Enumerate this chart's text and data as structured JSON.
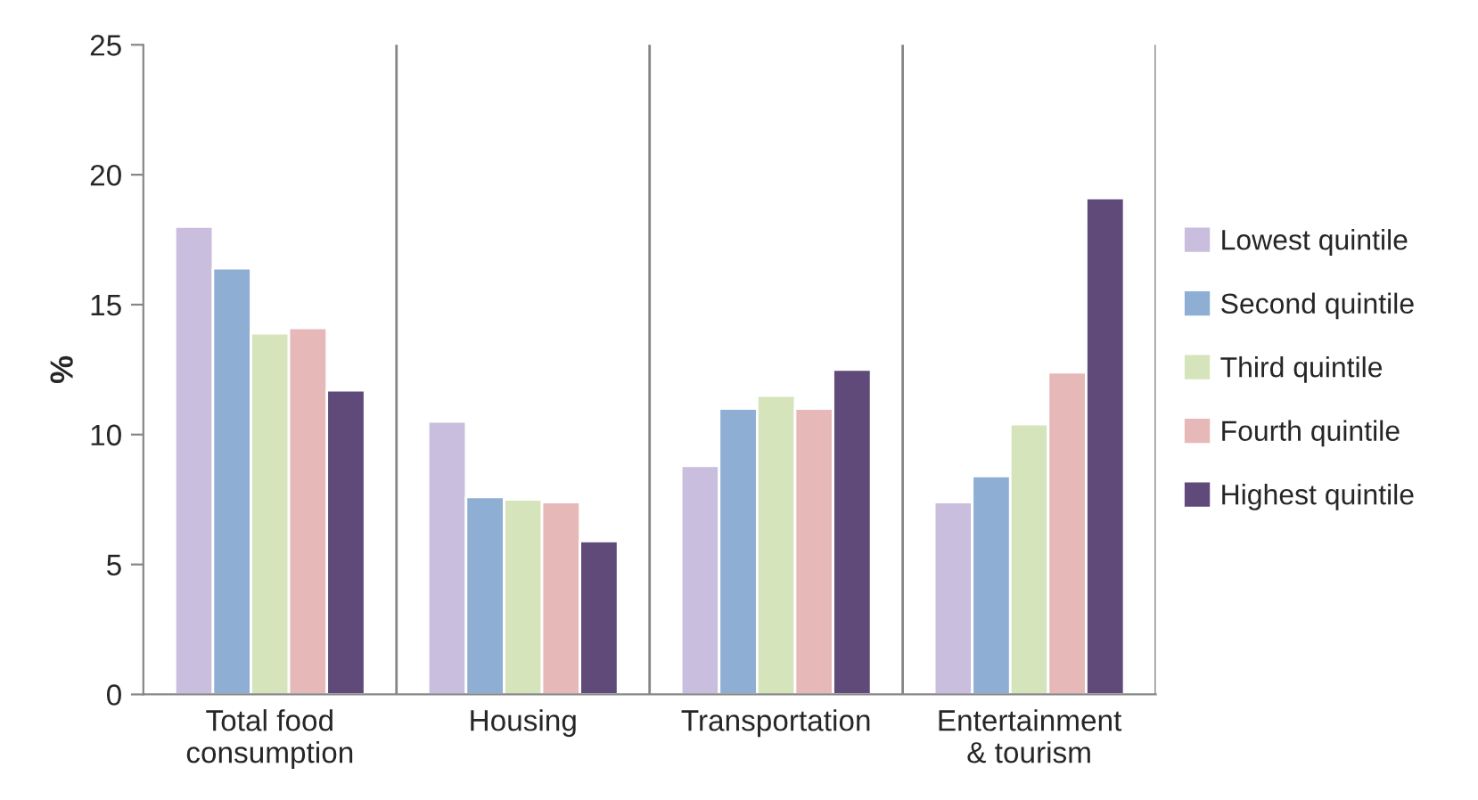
{
  "chart_data": {
    "type": "bar",
    "ylabel": "%",
    "categories": [
      "Total food\nconsumption",
      "Housing",
      "Transportation",
      "Entertainment\n& tourism"
    ],
    "series": [
      {
        "name": "Lowest quintile",
        "color": "#c9bedd",
        "values": [
          18.0,
          10.5,
          8.8,
          7.4
        ]
      },
      {
        "name": "Second quintile",
        "color": "#8eaed4",
        "values": [
          16.4,
          7.6,
          11.0,
          8.4
        ]
      },
      {
        "name": "Third quintile",
        "color": "#d6e4bc",
        "values": [
          13.9,
          7.5,
          11.5,
          10.4
        ]
      },
      {
        "name": "Fourth quintile",
        "color": "#e6b8b7",
        "values": [
          14.1,
          7.4,
          11.0,
          12.4
        ]
      },
      {
        "name": "Highest quintile",
        "color": "#5f4a7a",
        "values": [
          11.7,
          5.9,
          12.5,
          19.1
        ]
      }
    ],
    "ylim": [
      0,
      25
    ],
    "yticks": [
      0,
      5,
      10,
      15,
      20,
      25
    ],
    "grid": "x",
    "legend": "right"
  }
}
